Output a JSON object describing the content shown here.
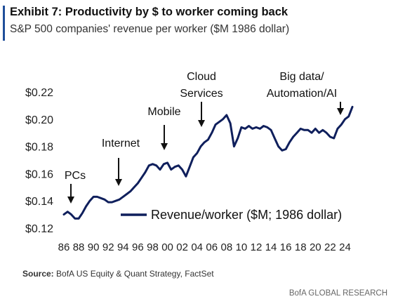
{
  "header": {
    "title": "Exhibit 7: Productivity by $ to worker coming back",
    "subtitle": "S&P 500 companies' revenue per worker ($M 1986 dollar)"
  },
  "footer": {
    "source_label": "Source:",
    "source_text": "BofA US Equity & Quant Strategy, FactSet",
    "brand": "BofA GLOBAL RESEARCH"
  },
  "colors": {
    "accent": "#1f4e9a",
    "series": "#0f1f5c"
  },
  "chart_data": {
    "type": "line",
    "title": "",
    "xlabel": "",
    "ylabel": "",
    "xlim": [
      1986,
      2025
    ],
    "ylim": [
      0.12,
      0.22
    ],
    "x_ticks": [
      "86",
      "88",
      "90",
      "92",
      "94",
      "96",
      "98",
      "00",
      "02",
      "04",
      "06",
      "08",
      "10",
      "12",
      "14",
      "16",
      "18",
      "20",
      "22",
      "24"
    ],
    "y_ticks": [
      "$0.12",
      "$0.14",
      "$0.16",
      "$0.18",
      "$0.20",
      "$0.22"
    ],
    "grid": false,
    "legend": {
      "position": "bottom-right",
      "entries": [
        "Revenue/worker ($M; 1986 dollar)"
      ]
    },
    "series": [
      {
        "name": "Revenue/worker ($M; 1986 dollar)",
        "x": [
          1986.0,
          1986.5,
          1987.0,
          1987.5,
          1988.0,
          1988.5,
          1989.0,
          1989.5,
          1990.0,
          1990.5,
          1991.0,
          1991.5,
          1992.0,
          1992.5,
          1993.0,
          1993.5,
          1994.0,
          1994.5,
          1995.0,
          1995.5,
          1996.0,
          1996.5,
          1997.0,
          1997.5,
          1998.0,
          1998.5,
          1999.0,
          1999.5,
          2000.0,
          2000.5,
          2001.0,
          2001.5,
          2002.0,
          2002.5,
          2003.0,
          2003.5,
          2004.0,
          2004.5,
          2005.0,
          2005.5,
          2006.0,
          2006.5,
          2007.0,
          2007.5,
          2008.0,
          2008.5,
          2009.0,
          2009.5,
          2010.0,
          2010.5,
          2011.0,
          2011.5,
          2012.0,
          2012.5,
          2013.0,
          2013.5,
          2014.0,
          2014.5,
          2015.0,
          2015.5,
          2016.0,
          2016.5,
          2017.0,
          2017.5,
          2018.0,
          2018.5,
          2019.0,
          2019.5,
          2020.0,
          2020.5,
          2021.0,
          2021.5,
          2022.0,
          2022.5,
          2023.0,
          2023.5,
          2024.0,
          2024.5,
          2025.0
        ],
        "values": [
          0.13,
          0.132,
          0.13,
          0.127,
          0.127,
          0.131,
          0.136,
          0.14,
          0.143,
          0.143,
          0.142,
          0.141,
          0.139,
          0.139,
          0.14,
          0.141,
          0.143,
          0.145,
          0.147,
          0.15,
          0.153,
          0.157,
          0.161,
          0.166,
          0.167,
          0.166,
          0.163,
          0.167,
          0.168,
          0.163,
          0.165,
          0.166,
          0.163,
          0.158,
          0.165,
          0.172,
          0.175,
          0.18,
          0.183,
          0.185,
          0.19,
          0.196,
          0.198,
          0.2,
          0.203,
          0.197,
          0.18,
          0.186,
          0.194,
          0.193,
          0.195,
          0.193,
          0.194,
          0.193,
          0.195,
          0.194,
          0.192,
          0.186,
          0.18,
          0.177,
          0.178,
          0.183,
          0.187,
          0.19,
          0.193,
          0.192,
          0.192,
          0.19,
          0.193,
          0.19,
          0.192,
          0.19,
          0.187,
          0.186,
          0.193,
          0.196,
          0.2,
          0.202,
          0.209
        ]
      }
    ],
    "annotations": [
      {
        "id": "pcs",
        "lines": [
          "PCs"
        ],
        "x": 1986.5
      },
      {
        "id": "internet",
        "lines": [
          "Internet"
        ],
        "x": 1993.5
      },
      {
        "id": "mobile",
        "lines": [
          "Mobile"
        ],
        "x": 1999.5
      },
      {
        "id": "cloud",
        "lines": [
          "Cloud",
          "Services"
        ],
        "x": 2005.0
      },
      {
        "id": "bigdata",
        "lines": [
          "Big data/",
          "Automation/AI"
        ],
        "x": 2022.8
      }
    ]
  }
}
